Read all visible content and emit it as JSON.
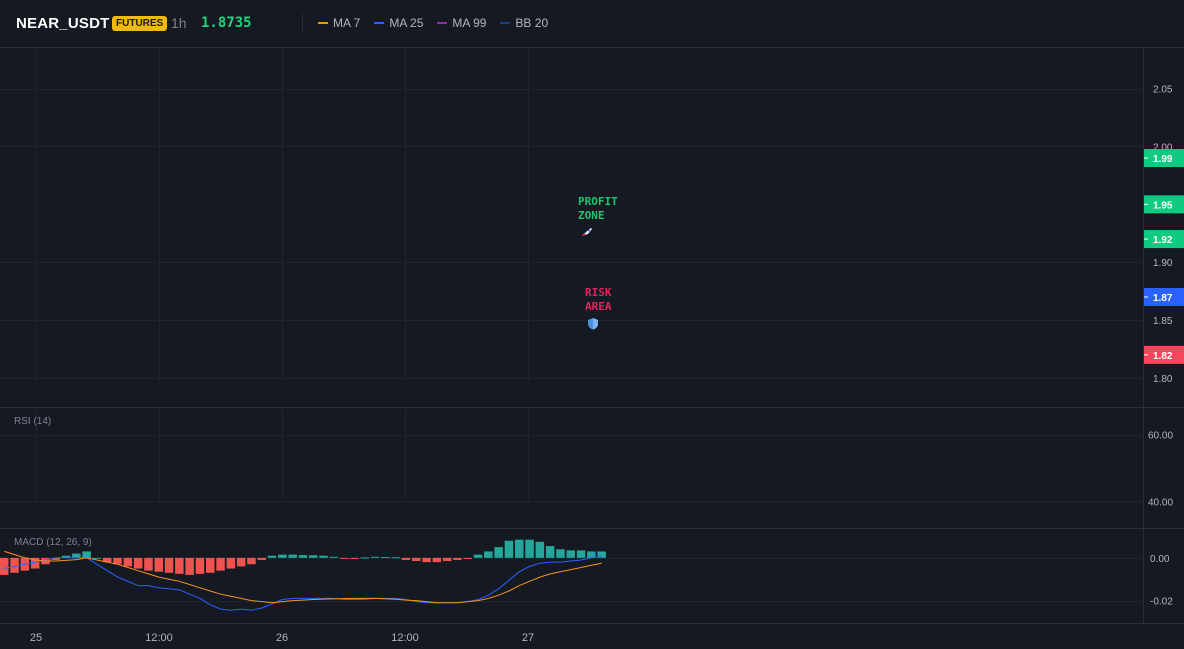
{
  "header": {
    "symbol": "NEAR_USDT",
    "badge": "FUTURES",
    "interval": "1h",
    "price": "1.8735"
  },
  "legend": [
    {
      "label": "MA 7",
      "color": "#f7931a"
    },
    {
      "label": "MA 25",
      "color": "#2962ff"
    },
    {
      "label": "MA 99",
      "color": "#9c27b0"
    },
    {
      "label": "BB 20",
      "color": "#1e3a8a"
    }
  ],
  "colors": {
    "background": "#151922",
    "grid": "#1f2430",
    "up": "#26a69a",
    "down": "#ef5350",
    "profit_text": "#22c36f",
    "risk_text": "#e0245e"
  },
  "annotations": {
    "profit_zone": "PROFIT\nZONE",
    "profit_icon": "rocket-icon",
    "risk_area": "RISK\nAREA",
    "risk_icon": "shield-icon"
  },
  "panes": {
    "rsi_label": "RSI (14)",
    "macd_label": "MACD (12, 26, 9)"
  },
  "chart_data": [
    {
      "type": "line",
      "pane": "price",
      "ylim": [
        1.775,
        2.085
      ],
      "y_ticks": [
        "2.05",
        "2.00",
        "1.90",
        "1.85",
        "1.80"
      ],
      "x_ticks": [
        "25",
        "12:00",
        "26",
        "12:00",
        "27"
      ],
      "price_labels": [
        {
          "value": 1.99,
          "text": "1.99",
          "color": "#0ecb81"
        },
        {
          "value": 1.95,
          "text": "1.95",
          "color": "#0ecb81"
        },
        {
          "value": 1.92,
          "text": "1.92",
          "color": "#0ecb81"
        },
        {
          "value": 1.87,
          "text": "1.87",
          "color": "#2962ff"
        },
        {
          "value": 1.82,
          "text": "1.82",
          "color": "#f6465d"
        }
      ],
      "series": []
    },
    {
      "type": "line",
      "pane": "rsi",
      "ylim": [
        32,
        68
      ],
      "y_ticks": [
        "60.00",
        "40.00"
      ],
      "series": []
    },
    {
      "type": "bar",
      "pane": "macd",
      "ylim": [
        -0.0305,
        0.0135
      ],
      "y_ticks": [
        "0.00",
        "-0.02"
      ],
      "histogram": [
        -0.008,
        -0.007,
        -0.006,
        -0.005,
        -0.003,
        -0.001,
        0.001,
        0.002,
        0.003,
        0.0,
        -0.002,
        -0.003,
        -0.004,
        -0.005,
        -0.006,
        -0.0065,
        -0.007,
        -0.0075,
        -0.008,
        -0.0075,
        -0.007,
        -0.006,
        -0.005,
        -0.004,
        -0.003,
        -0.001,
        0.001,
        0.0015,
        0.0015,
        0.0013,
        0.0012,
        0.001,
        0.0005,
        -0.0003,
        -0.0005,
        0.0002,
        0.0005,
        0.0004,
        0.0003,
        -0.001,
        -0.0015,
        -0.002,
        -0.002,
        -0.0015,
        -0.001,
        -0.0005,
        0.0015,
        0.003,
        0.005,
        0.008,
        0.0085,
        0.0085,
        0.0075,
        0.0055,
        0.004,
        0.0035,
        0.0035,
        0.003,
        0.003
      ],
      "series": [
        {
          "name": "MACD",
          "color": "#2962ff",
          "values": [
            -0.005,
            -0.004,
            -0.003,
            -0.002,
            -0.001,
            0.0,
            0.0,
            0.0,
            0.0,
            -0.003,
            -0.006,
            -0.009,
            -0.011,
            -0.013,
            -0.013,
            -0.014,
            -0.0145,
            -0.015,
            -0.017,
            -0.019,
            -0.022,
            -0.024,
            -0.0245,
            -0.024,
            -0.0245,
            -0.0235,
            -0.0215,
            -0.0195,
            -0.019,
            -0.019,
            -0.019,
            -0.019,
            -0.019,
            -0.0195,
            -0.0195,
            -0.0195,
            -0.019,
            -0.019,
            -0.019,
            -0.0195,
            -0.0205,
            -0.021,
            -0.021,
            -0.021,
            -0.021,
            -0.0205,
            -0.0195,
            -0.0175,
            -0.0145,
            -0.0105,
            -0.0065,
            -0.004,
            -0.0025,
            -0.002,
            -0.002,
            -0.0015,
            -0.001,
            0.0,
            0.0005
          ]
        },
        {
          "name": "Signal",
          "color": "#f7931a",
          "values": [
            0.003,
            0.0015,
            0.0,
            -0.001,
            -0.0015,
            -0.0015,
            -0.0012,
            -0.0008,
            0.0,
            -0.001,
            -0.002,
            -0.003,
            -0.0045,
            -0.006,
            -0.0075,
            -0.009,
            -0.01,
            -0.011,
            -0.0125,
            -0.014,
            -0.0155,
            -0.017,
            -0.018,
            -0.019,
            -0.02,
            -0.0205,
            -0.021,
            -0.0205,
            -0.02,
            -0.0198,
            -0.0195,
            -0.0193,
            -0.0192,
            -0.0191,
            -0.019,
            -0.019,
            -0.019,
            -0.0192,
            -0.0194,
            -0.0198,
            -0.02,
            -0.0205,
            -0.021,
            -0.021,
            -0.021,
            -0.0205,
            -0.02,
            -0.019,
            -0.0175,
            -0.0155,
            -0.013,
            -0.011,
            -0.009,
            -0.0075,
            -0.0065,
            -0.0055,
            -0.0045,
            -0.0035,
            -0.0025
          ]
        }
      ]
    }
  ]
}
